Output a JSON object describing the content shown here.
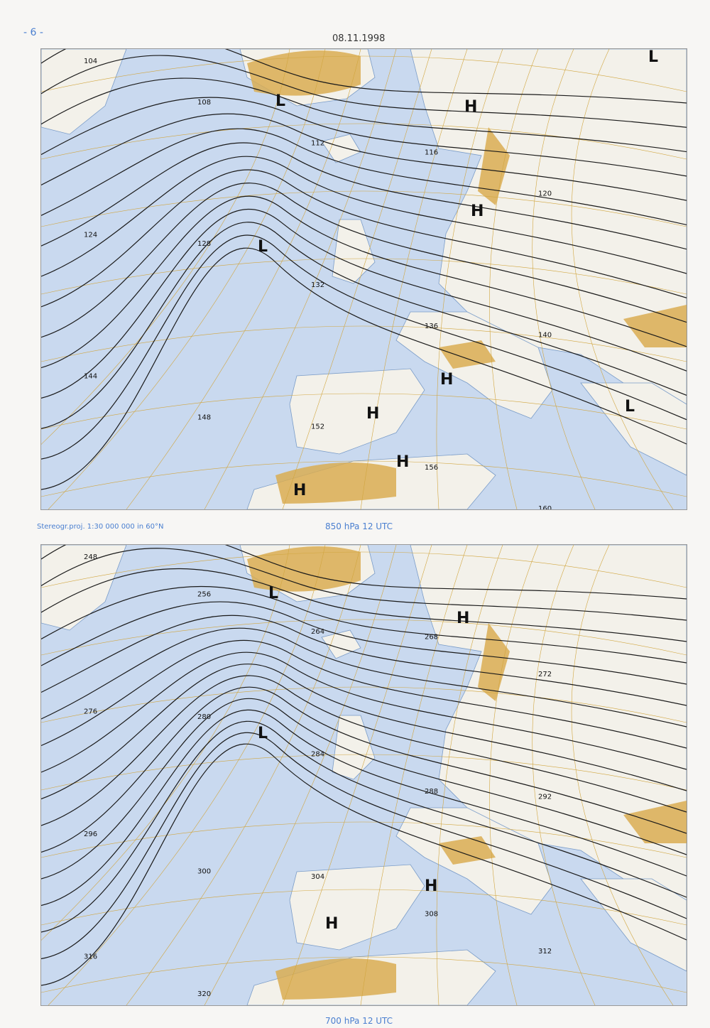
{
  "page_number": "- 6 -",
  "date": "08.11.1998",
  "projection_note": "Stereogr.proj. 1:30 000 000 in 60°N",
  "colors": {
    "ocean": "#c9d9ef",
    "land_low": "#f3f1ea",
    "land_high": "#d9ad52",
    "contour": "#1a1a1a",
    "grid": "#d1a640",
    "caption": "#4a7fd0"
  },
  "maps": [
    {
      "caption": "850 hPa 12 UTC",
      "systems": [
        {
          "type": "L",
          "label": "L"
        },
        {
          "type": "L",
          "label": "L"
        },
        {
          "type": "H",
          "label": "H"
        },
        {
          "type": "H",
          "label": "H"
        },
        {
          "type": "H",
          "label": "H"
        },
        {
          "type": "H",
          "label": "H"
        },
        {
          "type": "H",
          "label": "H"
        },
        {
          "type": "H",
          "label": "H"
        },
        {
          "type": "L",
          "label": "L"
        },
        {
          "type": "L",
          "label": "L"
        }
      ],
      "contour_labels": [
        "104",
        "108",
        "112",
        "116",
        "120",
        "124",
        "128",
        "132",
        "136",
        "140",
        "144",
        "148",
        "152",
        "156",
        "160"
      ]
    },
    {
      "caption": "700 hPa 12 UTC",
      "systems": [
        {
          "type": "L",
          "label": "L"
        },
        {
          "type": "L",
          "label": "L"
        },
        {
          "type": "H",
          "label": "H"
        },
        {
          "type": "H",
          "label": "H"
        },
        {
          "type": "H",
          "label": "H"
        }
      ],
      "contour_labels": [
        "248",
        "256",
        "264",
        "268",
        "272",
        "276",
        "280",
        "284",
        "288",
        "292",
        "296",
        "300",
        "304",
        "308",
        "312",
        "316",
        "320"
      ]
    }
  ]
}
